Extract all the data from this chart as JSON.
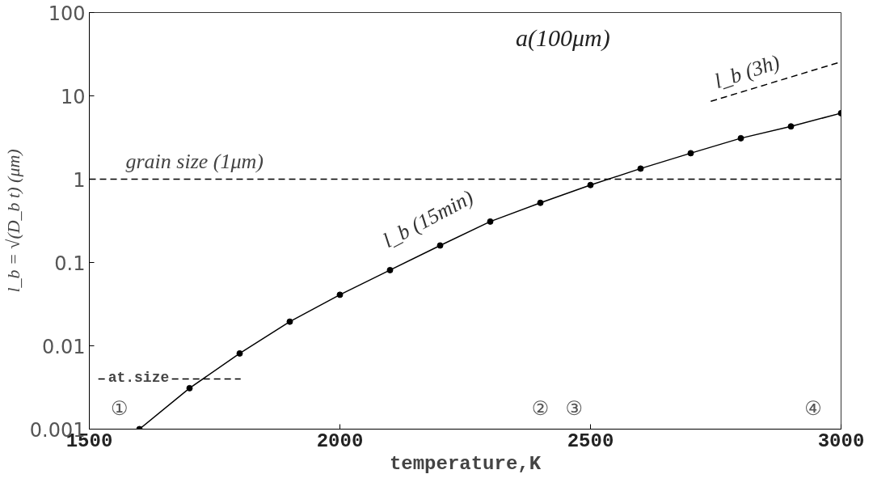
{
  "chart_data": {
    "type": "line",
    "xlabel": "temperature,K",
    "ylabel": "l_b = √(D_b t) (μm)",
    "log": "y",
    "grid": false,
    "xlim": [
      1500,
      3000
    ],
    "ylim": [
      0.001,
      100
    ],
    "xticks": [
      1500,
      2000,
      2500,
      3000
    ],
    "yticks": [
      {
        "value": 0.001,
        "label": "0.001"
      },
      {
        "value": 0.01,
        "label": "0.01"
      },
      {
        "value": 0.1,
        "label": "0.1"
      },
      {
        "value": 1,
        "label": "1"
      },
      {
        "value": 10,
        "label": "10"
      },
      {
        "value": 100,
        "label": "100"
      }
    ],
    "series": [
      {
        "name": "l_b (15min)",
        "color": "#000000",
        "marker": "circle",
        "line_style": "solid",
        "x": [
          1600,
          1700,
          1800,
          1900,
          2000,
          2100,
          2200,
          2300,
          2400,
          2500,
          2600,
          2700,
          2800,
          2900,
          3000
        ],
        "values": [
          0.001,
          0.0031,
          0.0081,
          0.0195,
          0.041,
          0.081,
          0.16,
          0.31,
          0.52,
          0.85,
          1.34,
          2.05,
          3.1,
          4.3,
          6.2
        ]
      },
      {
        "name": "l_b (3h)",
        "color": "#000000",
        "marker": "none",
        "line_style": "dashed",
        "x": [
          2740,
          3000
        ],
        "values": [
          8.6,
          25.6
        ]
      },
      {
        "name": "at.size",
        "color": "#000000",
        "marker": "none",
        "line_style": "dashed",
        "x": [
          1518,
          1802
        ],
        "values": [
          0.004,
          0.004
        ]
      }
    ],
    "ref_lines": [
      {
        "axis": "y",
        "value": 1,
        "label": "grain size (1μm)",
        "line_style": "dashed",
        "color": "#000000"
      }
    ],
    "annotations": [
      "a(100μm)",
      "①",
      "②",
      "③",
      "④"
    ]
  }
}
